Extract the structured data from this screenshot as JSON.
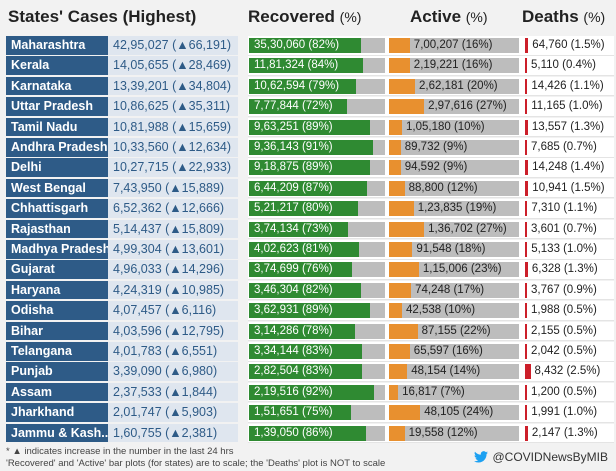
{
  "chart_data": {
    "type": "table",
    "columns": {
      "states": "States' Cases (Highest)",
      "recovered": "Recovered",
      "active": "Active",
      "deaths": "Deaths",
      "pct": "(%)"
    },
    "rows": [
      {
        "state": "Maharashtra",
        "cases": "42,95,027 (▲66,191)",
        "rec": 82,
        "rec_label": "35,30,060 (82%)",
        "act": 16,
        "act_label": "7,00,207 (16%)",
        "dea": 1.5,
        "dea_label": "64,760 (1.5%)"
      },
      {
        "state": "Kerala",
        "cases": "14,05,655 (▲28,469)",
        "rec": 84,
        "rec_label": "11,81,324 (84%)",
        "act": 16,
        "act_label": "2,19,221 (16%)",
        "dea": 0.4,
        "dea_label": "5,110 (0.4%)"
      },
      {
        "state": "Karnataka",
        "cases": "13,39,201 (▲34,804)",
        "rec": 79,
        "rec_label": "10,62,594 (79%)",
        "act": 20,
        "act_label": "2,62,181 (20%)",
        "dea": 1.1,
        "dea_label": "14,426 (1.1%)"
      },
      {
        "state": "Uttar Pradesh",
        "cases": "10,86,625 (▲35,311)",
        "rec": 72,
        "rec_label": "7,77,844 (72%)",
        "act": 27,
        "act_label": "2,97,616 (27%)",
        "dea": 1.0,
        "dea_label": "11,165 (1.0%)"
      },
      {
        "state": "Tamil Nadu",
        "cases": "10,81,988 (▲15,659)",
        "rec": 89,
        "rec_label": "9,63,251 (89%)",
        "act": 10,
        "act_label": "1,05,180 (10%)",
        "dea": 1.3,
        "dea_label": "13,557 (1.3%)"
      },
      {
        "state": "Andhra Pradesh",
        "cases": "10,33,560 (▲12,634)",
        "rec": 91,
        "rec_label": "9,36,143 (91%)",
        "act": 9,
        "act_label": "89,732 (9%)",
        "dea": 0.7,
        "dea_label": "7,685 (0.7%)"
      },
      {
        "state": "Delhi",
        "cases": "10,27,715 (▲22,933)",
        "rec": 89,
        "rec_label": "9,18,875 (89%)",
        "act": 9,
        "act_label": "94,592 (9%)",
        "dea": 1.4,
        "dea_label": "14,248 (1.4%)"
      },
      {
        "state": "West Bengal",
        "cases": "7,43,950 (▲15,889)",
        "rec": 87,
        "rec_label": "6,44,209 (87%)",
        "act": 12,
        "act_label": "88,800 (12%)",
        "dea": 1.5,
        "dea_label": "10,941 (1.5%)"
      },
      {
        "state": "Chhattisgarh",
        "cases": "6,52,362 (▲12,666)",
        "rec": 80,
        "rec_label": "5,21,217 (80%)",
        "act": 19,
        "act_label": "1,23,835 (19%)",
        "dea": 1.1,
        "dea_label": "7,310 (1.1%)"
      },
      {
        "state": "Rajasthan",
        "cases": "5,14,437 (▲15,809)",
        "rec": 73,
        "rec_label": "3,74,134 (73%)",
        "act": 27,
        "act_label": "1,36,702 (27%)",
        "dea": 0.7,
        "dea_label": "3,601 (0.7%)"
      },
      {
        "state": "Madhya Pradesh",
        "cases": "4,99,304 (▲13,601)",
        "rec": 81,
        "rec_label": "4,02,623 (81%)",
        "act": 18,
        "act_label": "91,548 (18%)",
        "dea": 1.0,
        "dea_label": "5,133 (1.0%)"
      },
      {
        "state": "Gujarat",
        "cases": "4,96,033 (▲14,296)",
        "rec": 76,
        "rec_label": "3,74,699 (76%)",
        "act": 23,
        "act_label": "1,15,006 (23%)",
        "dea": 1.3,
        "dea_label": "6,328 (1.3%)"
      },
      {
        "state": "Haryana",
        "cases": "4,24,319 (▲10,985)",
        "rec": 82,
        "rec_label": "3,46,304 (82%)",
        "act": 17,
        "act_label": "74,248 (17%)",
        "dea": 0.9,
        "dea_label": "3,767 (0.9%)"
      },
      {
        "state": "Odisha",
        "cases": "4,07,457 (▲6,116)",
        "rec": 89,
        "rec_label": "3,62,931 (89%)",
        "act": 10,
        "act_label": "42,538 (10%)",
        "dea": 0.5,
        "dea_label": "1,988 (0.5%)"
      },
      {
        "state": "Bihar",
        "cases": "4,03,596 (▲12,795)",
        "rec": 78,
        "rec_label": "3,14,286 (78%)",
        "act": 22,
        "act_label": "87,155 (22%)",
        "dea": 0.5,
        "dea_label": "2,155 (0.5%)"
      },
      {
        "state": "Telangana",
        "cases": "4,01,783 (▲6,551)",
        "rec": 83,
        "rec_label": "3,34,144 (83%)",
        "act": 16,
        "act_label": "65,597 (16%)",
        "dea": 0.5,
        "dea_label": "2,042 (0.5%)"
      },
      {
        "state": "Punjab",
        "cases": "3,39,090 (▲6,980)",
        "rec": 83,
        "rec_label": "2,82,504 (83%)",
        "act": 14,
        "act_label": "48,154 (14%)",
        "dea": 2.5,
        "dea_label": "8,432 (2.5%)"
      },
      {
        "state": "Assam",
        "cases": "2,37,533 (▲1,844)",
        "rec": 92,
        "rec_label": "2,19,516 (92%)",
        "act": 7,
        "act_label": "16,817 (7%)",
        "dea": 0.5,
        "dea_label": "1,200 (0.5%)"
      },
      {
        "state": "Jharkhand",
        "cases": "2,01,747 (▲5,903)",
        "rec": 75,
        "rec_label": "1,51,651 (75%)",
        "act": 24,
        "act_label": "48,105 (24%)",
        "dea": 1.0,
        "dea_label": "1,991 (1.0%)"
      },
      {
        "state": "Jammu & Kash..",
        "cases": "1,60,755 (▲2,381)",
        "rec": 86,
        "rec_label": "1,39,050 (86%)",
        "act": 12,
        "act_label": "19,558 (12%)",
        "dea": 1.3,
        "dea_label": "2,147 (1.3%)"
      }
    ],
    "footnotes": [
      "* ▲ indicates increase in the number in the last 24 hrs",
      "'Recovered' and 'Active' bar plots (for states) are to scale; the 'Deaths' plot is NOT to scale"
    ],
    "handle": "@COVIDNewsByMIB",
    "colors": {
      "recovered": "#2f8a32",
      "active": "#e8902f",
      "deaths": "#cc1f2a",
      "state_bg": "#2e5b87"
    }
  }
}
